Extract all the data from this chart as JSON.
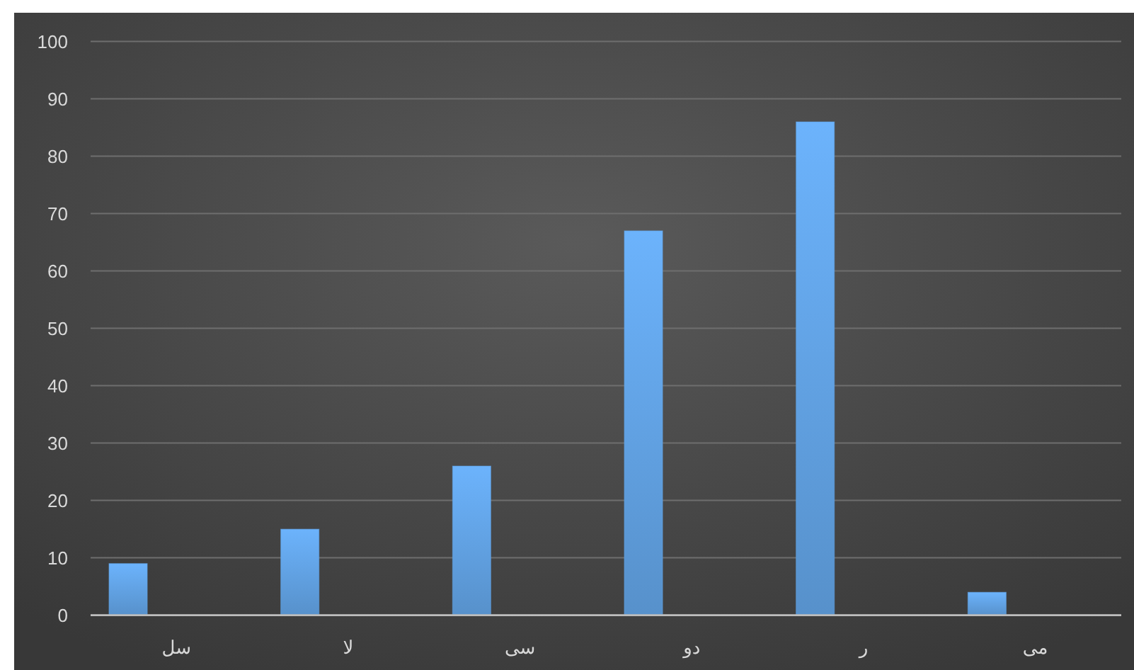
{
  "chart_data": {
    "type": "bar",
    "categories": [
      "سل",
      "لا",
      "سی",
      "دو",
      "ر",
      "می"
    ],
    "values": [
      9,
      15,
      26,
      67,
      86,
      4
    ],
    "color": "#5f9ede",
    "ylim": [
      0,
      100
    ],
    "yticks": [
      0,
      10,
      20,
      30,
      40,
      50,
      60,
      70,
      80,
      90,
      100
    ],
    "grid": "y"
  }
}
